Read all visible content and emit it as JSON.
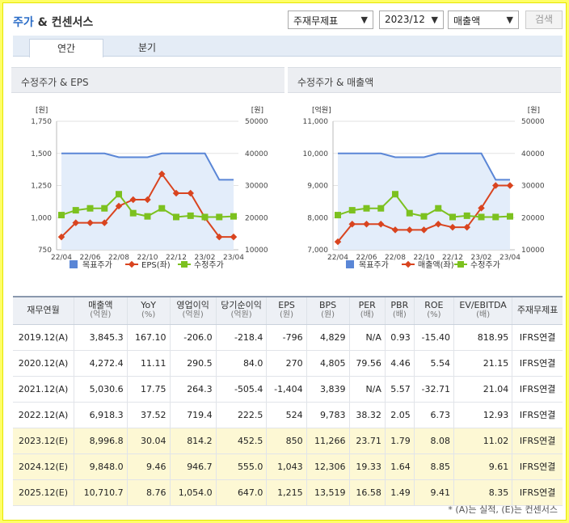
{
  "header": {
    "title_accent": "주가",
    "title_rest": " & 컨센서스",
    "select_metric": "주재무제표",
    "select_period": "2023/12",
    "select_item": "매출액",
    "search_label": "검색"
  },
  "tabs": [
    {
      "label": "연간"
    },
    {
      "label": "분기"
    }
  ],
  "panels": {
    "left_title": "수정주가 & EPS",
    "right_title": "수정주가 & 매출액"
  },
  "chart_data": [
    {
      "type": "line",
      "title": "수정주가 & EPS",
      "x": [
        "22/04",
        "22/05",
        "22/06",
        "22/07",
        "22/08",
        "22/09",
        "22/10",
        "22/11",
        "22/12",
        "23/01",
        "23/02",
        "23/03",
        "23/04"
      ],
      "xticks": [
        "22/04",
        "22/06",
        "22/08",
        "22/10",
        "22/12",
        "23/02",
        "23/04"
      ],
      "left_axis": {
        "unit": "[원]",
        "ticks": [
          "1,750",
          "1,500",
          "1,250",
          "1,000",
          "750"
        ],
        "range": [
          750,
          1750
        ]
      },
      "right_axis": {
        "unit": "[원]",
        "ticks": [
          "50000",
          "40000",
          "30000",
          "20000",
          "10000"
        ],
        "range": [
          10000,
          50000
        ]
      },
      "series": [
        {
          "name": "목표주가",
          "axis": "right",
          "color": "#5a86d6",
          "values": [
            40000,
            40000,
            40000,
            40000,
            38800,
            38800,
            38800,
            40000,
            40000,
            40000,
            40000,
            31800,
            31800
          ]
        },
        {
          "name": "EPS(좌)",
          "axis": "left",
          "color": "#d9441f",
          "values": [
            850,
            960,
            960,
            960,
            1090,
            1140,
            1140,
            1340,
            1190,
            1190,
            1000,
            850,
            850
          ]
        },
        {
          "name": "수정주가",
          "axis": "right",
          "color": "#7cc11f",
          "values": [
            20800,
            22300,
            22900,
            22900,
            27300,
            21400,
            20400,
            22900,
            20200,
            20600,
            20200,
            20200,
            20400
          ]
        }
      ],
      "legend": [
        "목표주가",
        "EPS(좌)",
        "수정주가"
      ]
    },
    {
      "type": "line",
      "title": "수정주가 & 매출액",
      "x": [
        "22/04",
        "22/05",
        "22/06",
        "22/07",
        "22/08",
        "22/09",
        "22/10",
        "22/11",
        "22/12",
        "23/01",
        "23/02",
        "23/03",
        "23/04"
      ],
      "xticks": [
        "22/04",
        "22/06",
        "22/08",
        "22/10",
        "22/12",
        "23/02",
        "23/04"
      ],
      "left_axis": {
        "unit": "[억원]",
        "ticks": [
          "11,000",
          "10,000",
          "9,000",
          "8,000",
          "7,000"
        ],
        "range": [
          7000,
          11000
        ]
      },
      "right_axis": {
        "unit": "[원]",
        "ticks": [
          "50000",
          "40000",
          "30000",
          "20000",
          "10000"
        ],
        "range": [
          10000,
          50000
        ]
      },
      "series": [
        {
          "name": "목표주가",
          "axis": "right",
          "color": "#5a86d6",
          "values": [
            40000,
            40000,
            40000,
            40000,
            38800,
            38800,
            38800,
            40000,
            40000,
            40000,
            40000,
            31800,
            31800
          ]
        },
        {
          "name": "매출액(좌)",
          "axis": "left",
          "color": "#d9441f",
          "values": [
            7250,
            7800,
            7800,
            7800,
            7620,
            7620,
            7620,
            7800,
            7700,
            7700,
            8300,
            9000,
            9000
          ]
        },
        {
          "name": "수정주가",
          "axis": "right",
          "color": "#7cc11f",
          "values": [
            20800,
            22300,
            22900,
            22900,
            27300,
            21400,
            20400,
            22900,
            20200,
            20600,
            20200,
            20200,
            20400
          ]
        }
      ],
      "legend": [
        "목표주가",
        "매출액(좌)",
        "수정주가"
      ]
    }
  ],
  "table": {
    "headers": [
      [
        "재무연월",
        ""
      ],
      [
        "매출액",
        "(억원)"
      ],
      [
        "YoY",
        "(%)"
      ],
      [
        "영업이익",
        "(억원)"
      ],
      [
        "당기순이익",
        "(억원)"
      ],
      [
        "EPS",
        "(원)"
      ],
      [
        "BPS",
        "(원)"
      ],
      [
        "PER",
        "(배)"
      ],
      [
        "PBR",
        "(배)"
      ],
      [
        "ROE",
        "(%)"
      ],
      [
        "EV/EBITDA",
        "(배)"
      ],
      [
        "주재무제표",
        ""
      ]
    ],
    "rows": [
      [
        "2019.12(A)",
        "3,845.3",
        "167.10",
        "-206.0",
        "-218.4",
        "-796",
        "4,829",
        "N/A",
        "0.93",
        "-15.40",
        "818.95",
        "IFRS연결"
      ],
      [
        "2020.12(A)",
        "4,272.4",
        "11.11",
        "290.5",
        "84.0",
        "270",
        "4,805",
        "79.56",
        "4.46",
        "5.54",
        "21.15",
        "IFRS연결"
      ],
      [
        "2021.12(A)",
        "5,030.6",
        "17.75",
        "264.3",
        "-505.4",
        "-1,404",
        "3,839",
        "N/A",
        "5.57",
        "-32.71",
        "21.04",
        "IFRS연결"
      ],
      [
        "2022.12(A)",
        "6,918.3",
        "37.52",
        "719.4",
        "222.5",
        "524",
        "9,783",
        "38.32",
        "2.05",
        "6.73",
        "12.93",
        "IFRS연결"
      ],
      [
        "2023.12(E)",
        "8,996.8",
        "30.04",
        "814.2",
        "452.5",
        "850",
        "11,266",
        "23.71",
        "1.79",
        "8.08",
        "11.02",
        "IFRS연결"
      ],
      [
        "2024.12(E)",
        "9,848.0",
        "9.46",
        "946.7",
        "555.0",
        "1,043",
        "12,306",
        "19.33",
        "1.64",
        "8.85",
        "9.61",
        "IFRS연결"
      ],
      [
        "2025.12(E)",
        "10,710.7",
        "8.76",
        "1,054.0",
        "647.0",
        "1,215",
        "13,519",
        "16.58",
        "1.49",
        "9.41",
        "8.35",
        "IFRS연결"
      ]
    ]
  },
  "footnote": "* (A)는 실적, (E)는 컨센서스"
}
